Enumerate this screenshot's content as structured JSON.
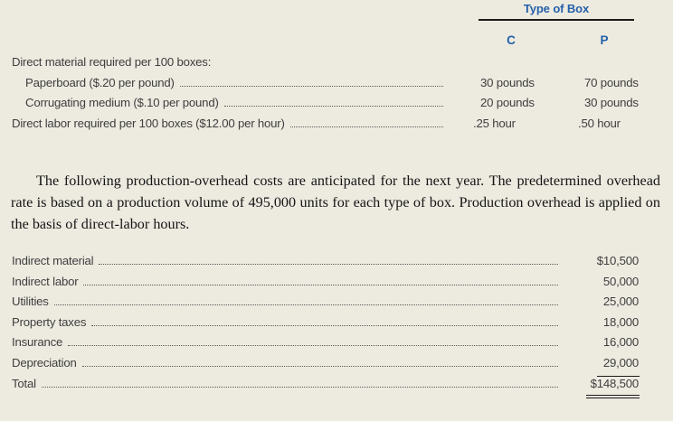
{
  "colors": {
    "background": "#EDEAE0",
    "heading_blue": "#2461A8",
    "body_text": "#3E3E3E",
    "serif_text": "#141414",
    "rule": "#1A1A1A"
  },
  "box_table": {
    "header_group": "Type of Box",
    "columns": [
      "C",
      "P"
    ],
    "rows": [
      {
        "label": "Direct material required per 100 boxes:",
        "c": "",
        "p": ""
      },
      {
        "label": "Paperboard ($.20 per pound)",
        "c": "30 pounds",
        "p": "70 pounds"
      },
      {
        "label": "Corrugating medium ($.10 per pound)",
        "c": "20 pounds",
        "p": "30 pounds"
      },
      {
        "label": "Direct labor required per 100 boxes ($12.00 per hour)",
        "c": ".25 hour",
        "p": ".50 hour"
      }
    ]
  },
  "paragraph": "The following production-overhead costs are anticipated for the next year. The predetermined overhead rate is based on a production volume of 495,000 units for each type of box. Production overhead is applied on the basis of direct-labor hours.",
  "overhead_table": {
    "rows": [
      {
        "label": "Indirect material",
        "amount": "$10,500"
      },
      {
        "label": "Indirect labor",
        "amount": "50,000"
      },
      {
        "label": "Utilities",
        "amount": "25,000"
      },
      {
        "label": "Property taxes",
        "amount": "18,000"
      },
      {
        "label": "Insurance",
        "amount": "16,000"
      },
      {
        "label": "Depreciation",
        "amount": "29,000"
      },
      {
        "label": "Total",
        "amount": "$148,500"
      }
    ]
  }
}
